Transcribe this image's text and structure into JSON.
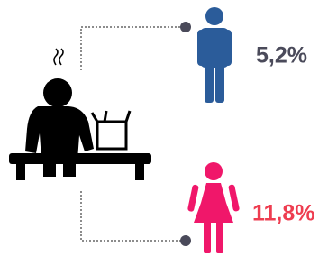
{
  "male": {
    "label": "5,2%"
  },
  "female": {
    "label": "11,8%"
  }
}
